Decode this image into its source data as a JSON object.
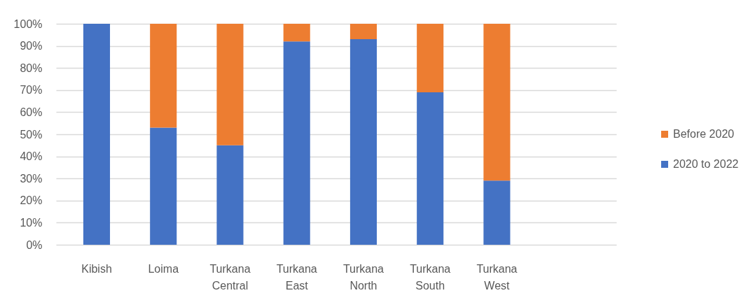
{
  "chart_data": {
    "type": "bar",
    "stacked": true,
    "categories": [
      "Kibish",
      "Loima",
      "Turkana Central",
      "Turkana East",
      "Turkana North",
      "Turkana South",
      "Turkana West"
    ],
    "series": [
      {
        "name": "2020 to 2022",
        "color": "#4472c4",
        "values": [
          100,
          53,
          45,
          92,
          93,
          69,
          29
        ]
      },
      {
        "name": "Before 2020",
        "color": "#ed7d31",
        "values": [
          0,
          47,
          55,
          8,
          7,
          31,
          71
        ]
      }
    ],
    "ylim": [
      0,
      100
    ],
    "yticks": [
      {
        "value": 0,
        "label": "0%"
      },
      {
        "value": 10,
        "label": "10%"
      },
      {
        "value": 20,
        "label": "20%"
      },
      {
        "value": 30,
        "label": "30%"
      },
      {
        "value": 40,
        "label": "40%"
      },
      {
        "value": 50,
        "label": "50%"
      },
      {
        "value": 60,
        "label": "60%"
      },
      {
        "value": 70,
        "label": "70%"
      },
      {
        "value": 80,
        "label": "80%"
      },
      {
        "value": 90,
        "label": "90%"
      },
      {
        "value": 100,
        "label": "100%"
      }
    ],
    "grid": "y",
    "legend": "right"
  }
}
